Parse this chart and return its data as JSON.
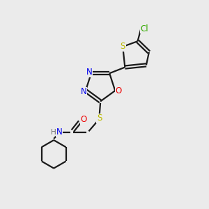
{
  "bg_color": "#ebebeb",
  "bond_color": "#1a1a1a",
  "atom_colors": {
    "N": "#0000ee",
    "O": "#ee0000",
    "S": "#bbbb00",
    "Cl": "#33aa00",
    "H": "#666666"
  },
  "lw": 1.6,
  "fontsize": 8.5,
  "figsize": [
    3.0,
    3.0
  ],
  "dpi": 100
}
